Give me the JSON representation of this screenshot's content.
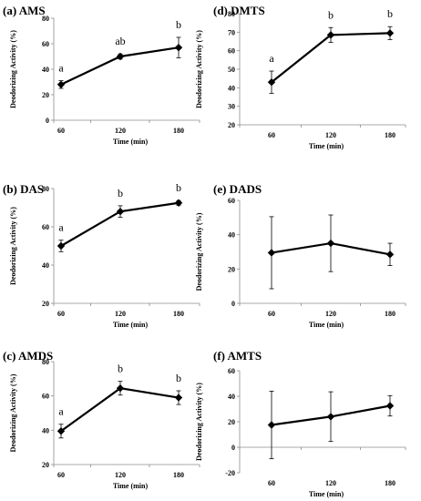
{
  "chart_data": [
    {
      "type": "line",
      "title": "(a) AMS",
      "xlabel": "Time (min)",
      "ylabel": "Deodorizing Activity (%)",
      "categories": [
        "60",
        "120",
        "180"
      ],
      "values": [
        28,
        50,
        57
      ],
      "errors": [
        3,
        2,
        8
      ],
      "sig_labels": [
        "a",
        "ab",
        "b"
      ],
      "ylim": [
        0,
        80
      ],
      "yticks": [
        "0",
        "20",
        "40",
        "60",
        "80"
      ]
    },
    {
      "type": "line",
      "title": "(b) DAS",
      "xlabel": "Time (min)",
      "ylabel": "Deodorizing Activity (%)",
      "categories": [
        "60",
        "120",
        "180"
      ],
      "values": [
        50,
        68,
        72.5
      ],
      "errors": [
        3,
        3,
        1.2
      ],
      "sig_labels": [
        "a",
        "b",
        "b"
      ],
      "ylim": [
        20,
        80
      ],
      "yticks": [
        "20",
        "40",
        "60",
        "80"
      ]
    },
    {
      "type": "line",
      "title": "(c) AMDS",
      "xlabel": "Time (min)",
      "ylabel": "Deodorizing Activity (%)",
      "categories": [
        "60",
        "120",
        "180"
      ],
      "values": [
        39.5,
        64.5,
        59
      ],
      "errors": [
        4,
        4,
        4
      ],
      "sig_labels": [
        "a",
        "b",
        "b"
      ],
      "ylim": [
        20,
        80
      ],
      "yticks": [
        "20",
        "40",
        "60",
        "80"
      ]
    },
    {
      "type": "line",
      "title": "(d) DMTS",
      "xlabel": "Time (min)",
      "ylabel": "Deodorizing Activity (%)",
      "categories": [
        "60",
        "120",
        "180"
      ],
      "values": [
        43,
        68.5,
        69.5
      ],
      "errors": [
        6,
        4,
        3.5
      ],
      "sig_labels": [
        "a",
        "b",
        "b"
      ],
      "ylim": [
        20,
        80
      ],
      "yticks": [
        "20",
        "30",
        "40",
        "50",
        "60",
        "70",
        "80"
      ]
    },
    {
      "type": "line",
      "title": "(e) DADS",
      "xlabel": "Time (min)",
      "ylabel": "Deodorizing Activity (%)",
      "categories": [
        "60",
        "120",
        "180"
      ],
      "values": [
        29.5,
        35,
        28.5
      ],
      "errors": [
        21,
        16.5,
        6.5
      ],
      "sig_labels": [],
      "ylim": [
        0,
        60
      ],
      "yticks": [
        "0",
        "20",
        "40",
        "60"
      ]
    },
    {
      "type": "line",
      "title": "(f) AMTS",
      "xlabel": "Time (min)",
      "ylabel": "Deodorizing Activity (%)",
      "categories": [
        "60",
        "120",
        "180"
      ],
      "values": [
        17.5,
        24,
        32.5
      ],
      "errors": [
        26.5,
        19.5,
        8
      ],
      "sig_labels": [],
      "ylim": [
        -20,
        60
      ],
      "yticks": [
        "-20",
        "0",
        "20",
        "40",
        "60"
      ]
    }
  ]
}
